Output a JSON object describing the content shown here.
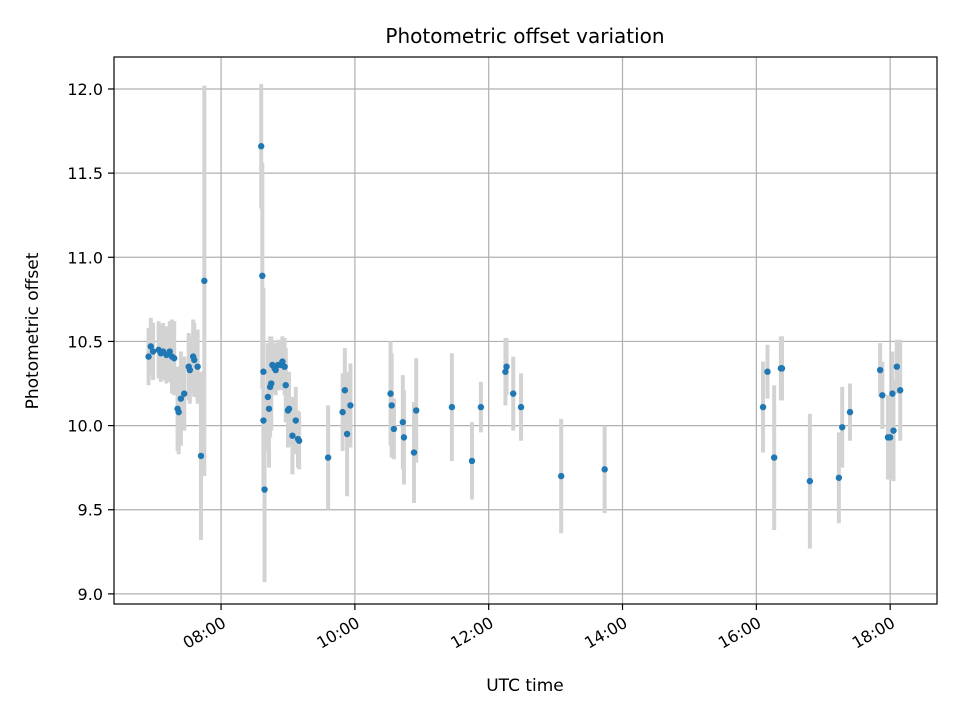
{
  "chart_data": {
    "type": "scatter",
    "title": "Photometric offset variation",
    "xlabel": "UTC time",
    "ylabel": "Photometric offset",
    "x_ticks": [
      "08:00",
      "10:00",
      "12:00",
      "14:00",
      "16:00",
      "18:00"
    ],
    "y_ticks": [
      "9.0",
      "9.5",
      "10.0",
      "10.5",
      "11.0",
      "11.5",
      "12.0"
    ],
    "xlim": [
      "06:24",
      "18:42"
    ],
    "ylim": [
      8.94,
      12.19
    ],
    "grid": true,
    "colors": {
      "marker": "#1f77b4",
      "errorbar": "#d3d3d3",
      "grid": "#b0b0b0"
    },
    "series": [
      {
        "points": [
          {
            "x": "06:55",
            "y": 10.41,
            "err": 0.17
          },
          {
            "x": "06:57",
            "y": 10.47,
            "err": 0.17
          },
          {
            "x": "06:59",
            "y": 10.44,
            "err": 0.17
          },
          {
            "x": "07:04",
            "y": 10.45,
            "err": 0.17
          },
          {
            "x": "07:06",
            "y": 10.43,
            "err": 0.17
          },
          {
            "x": "07:08",
            "y": 10.44,
            "err": 0.17
          },
          {
            "x": "07:11",
            "y": 10.42,
            "err": 0.17
          },
          {
            "x": "07:14",
            "y": 10.44,
            "err": 0.18
          },
          {
            "x": "07:16",
            "y": 10.41,
            "err": 0.22
          },
          {
            "x": "07:18",
            "y": 10.4,
            "err": 0.22
          },
          {
            "x": "07:21",
            "y": 10.1,
            "err": 0.25
          },
          {
            "x": "07:22",
            "y": 10.08,
            "err": 0.25
          },
          {
            "x": "07:24",
            "y": 10.16,
            "err": 0.28
          },
          {
            "x": "07:27",
            "y": 10.19,
            "err": 0.22
          },
          {
            "x": "07:31",
            "y": 10.35,
            "err": 0.2
          },
          {
            "x": "07:32",
            "y": 10.33,
            "err": 0.2
          },
          {
            "x": "07:35",
            "y": 10.41,
            "err": 0.22
          },
          {
            "x": "07:36",
            "y": 10.39,
            "err": 0.22
          },
          {
            "x": "07:39",
            "y": 10.35,
            "err": 0.22
          },
          {
            "x": "07:42",
            "y": 9.82,
            "err": 0.5
          },
          {
            "x": "07:45",
            "y": 10.86,
            "err": 1.16
          },
          {
            "x": "08:36",
            "y": 11.66,
            "err": 0.37
          },
          {
            "x": "08:37",
            "y": 10.89,
            "err": 0.67
          },
          {
            "x": "08:38",
            "y": 10.32,
            "err": 0.5
          },
          {
            "x": "08:38",
            "y": 10.03,
            "err": 0.4
          },
          {
            "x": "08:39",
            "y": 9.62,
            "err": 0.55
          },
          {
            "x": "08:42",
            "y": 10.17,
            "err": 0.32
          },
          {
            "x": "08:43",
            "y": 10.1,
            "err": 0.35
          },
          {
            "x": "08:44",
            "y": 10.23,
            "err": 0.3
          },
          {
            "x": "08:45",
            "y": 10.25,
            "err": 0.28
          },
          {
            "x": "08:46",
            "y": 10.36,
            "err": 0.15
          },
          {
            "x": "08:48",
            "y": 10.34,
            "err": 0.15
          },
          {
            "x": "08:49",
            "y": 10.33,
            "err": 0.15
          },
          {
            "x": "08:51",
            "y": 10.36,
            "err": 0.15
          },
          {
            "x": "08:54",
            "y": 10.36,
            "err": 0.15
          },
          {
            "x": "08:55",
            "y": 10.38,
            "err": 0.15
          },
          {
            "x": "08:57",
            "y": 10.35,
            "err": 0.17
          },
          {
            "x": "08:58",
            "y": 10.24,
            "err": 0.22
          },
          {
            "x": "09:00",
            "y": 10.09,
            "err": 0.22
          },
          {
            "x": "09:01",
            "y": 10.1,
            "err": 0.22
          },
          {
            "x": "09:04",
            "y": 9.94,
            "err": 0.23
          },
          {
            "x": "09:07",
            "y": 10.03,
            "err": 0.2
          },
          {
            "x": "09:09",
            "y": 9.92,
            "err": 0.17
          },
          {
            "x": "09:10",
            "y": 9.91,
            "err": 0.17
          },
          {
            "x": "09:36",
            "y": 9.81,
            "err": 0.31
          },
          {
            "x": "09:49",
            "y": 10.08,
            "err": 0.23
          },
          {
            "x": "09:51",
            "y": 10.21,
            "err": 0.25
          },
          {
            "x": "09:53",
            "y": 9.95,
            "err": 0.37
          },
          {
            "x": "09:56",
            "y": 10.12,
            "err": 0.25
          },
          {
            "x": "10:32",
            "y": 10.19,
            "err": 0.31
          },
          {
            "x": "10:33",
            "y": 10.12,
            "err": 0.31
          },
          {
            "x": "10:35",
            "y": 9.98,
            "err": 0.18
          },
          {
            "x": "10:43",
            "y": 10.02,
            "err": 0.28
          },
          {
            "x": "10:44",
            "y": 9.93,
            "err": 0.28
          },
          {
            "x": "10:53",
            "y": 9.84,
            "err": 0.3
          },
          {
            "x": "10:55",
            "y": 10.09,
            "err": 0.31
          },
          {
            "x": "11:27",
            "y": 10.11,
            "err": 0.32
          },
          {
            "x": "11:45",
            "y": 9.79,
            "err": 0.23
          },
          {
            "x": "11:53",
            "y": 10.11,
            "err": 0.15
          },
          {
            "x": "12:15",
            "y": 10.32,
            "err": 0.2
          },
          {
            "x": "12:16",
            "y": 10.35,
            "err": 0.17
          },
          {
            "x": "12:22",
            "y": 10.19,
            "err": 0.22
          },
          {
            "x": "12:29",
            "y": 10.11,
            "err": 0.2
          },
          {
            "x": "13:05",
            "y": 9.7,
            "err": 0.34
          },
          {
            "x": "13:44",
            "y": 9.74,
            "err": 0.26
          },
          {
            "x": "16:06",
            "y": 10.11,
            "err": 0.27
          },
          {
            "x": "16:10",
            "y": 10.32,
            "err": 0.16
          },
          {
            "x": "16:16",
            "y": 9.81,
            "err": 0.43
          },
          {
            "x": "16:22",
            "y": 10.34,
            "err": 0.19
          },
          {
            "x": "16:23",
            "y": 10.34,
            "err": 0.19
          },
          {
            "x": "16:48",
            "y": 9.67,
            "err": 0.4
          },
          {
            "x": "17:14",
            "y": 9.69,
            "err": 0.27
          },
          {
            "x": "17:17",
            "y": 9.99,
            "err": 0.24
          },
          {
            "x": "17:24",
            "y": 10.08,
            "err": 0.17
          },
          {
            "x": "17:51",
            "y": 10.33,
            "err": 0.16
          },
          {
            "x": "17:53",
            "y": 10.18,
            "err": 0.2
          },
          {
            "x": "17:58",
            "y": 9.93,
            "err": 0.25
          },
          {
            "x": "18:00",
            "y": 9.93,
            "err": 0.25
          },
          {
            "x": "18:02",
            "y": 10.19,
            "err": 0.25
          },
          {
            "x": "18:03",
            "y": 9.97,
            "err": 0.3
          },
          {
            "x": "18:06",
            "y": 10.35,
            "err": 0.16
          },
          {
            "x": "18:09",
            "y": 10.21,
            "err": 0.3
          }
        ]
      }
    ]
  }
}
